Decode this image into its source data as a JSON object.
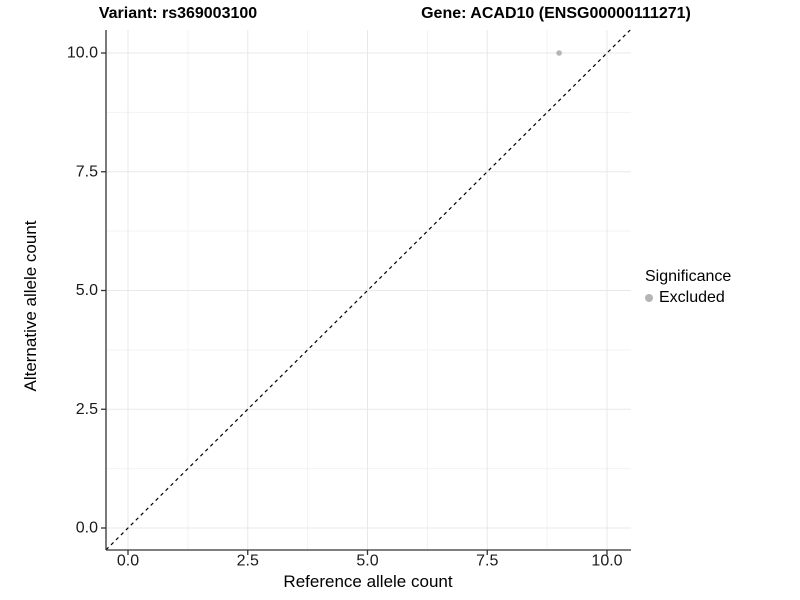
{
  "figure": {
    "title_left": "Variant: rs369003100",
    "title_right": "Gene: ACAD10 (ENSG00000111271)"
  },
  "chart_data": {
    "type": "scatter",
    "title": "Variant: rs369003100   Gene: ACAD10 (ENSG00000111271)",
    "xlabel": "Reference allele count",
    "ylabel": "Alternative allele count",
    "xlim": [
      -0.5,
      10.5
    ],
    "ylim": [
      -0.5,
      10.5
    ],
    "grid": true,
    "x_ticks": {
      "values": [
        0,
        2.5,
        5,
        7.5,
        10
      ],
      "labels": [
        "0.0",
        "2.5",
        "5.0",
        "7.5",
        "10.0"
      ]
    },
    "y_ticks": {
      "values": [
        0,
        2.5,
        5,
        7.5,
        10
      ],
      "labels": [
        "0.0",
        "2.5",
        "5.0",
        "7.5",
        "10.0"
      ]
    },
    "minor_ticks": [
      1.25,
      3.75,
      6.25,
      8.75
    ],
    "series": [
      {
        "name": "Excluded",
        "color": "#b5b5b5",
        "points": [
          {
            "x": 9,
            "y": 10
          }
        ],
        "point_radius": 2.8
      }
    ],
    "reference_line": {
      "slope": 1,
      "intercept": 0,
      "style": "dashed",
      "color": "#000000"
    },
    "legend": {
      "position": "right",
      "title": "Significance",
      "items": [
        {
          "label": "Excluded",
          "color": "#b5b5b5"
        }
      ]
    }
  },
  "colors": {
    "background": "#ffffff",
    "grid_major": "#e8e8e8",
    "grid_minor": "#f3f3f3",
    "axis_line": "#333333",
    "tick_text": "#1a1a1a",
    "point_grey": "#b5b5b5"
  }
}
